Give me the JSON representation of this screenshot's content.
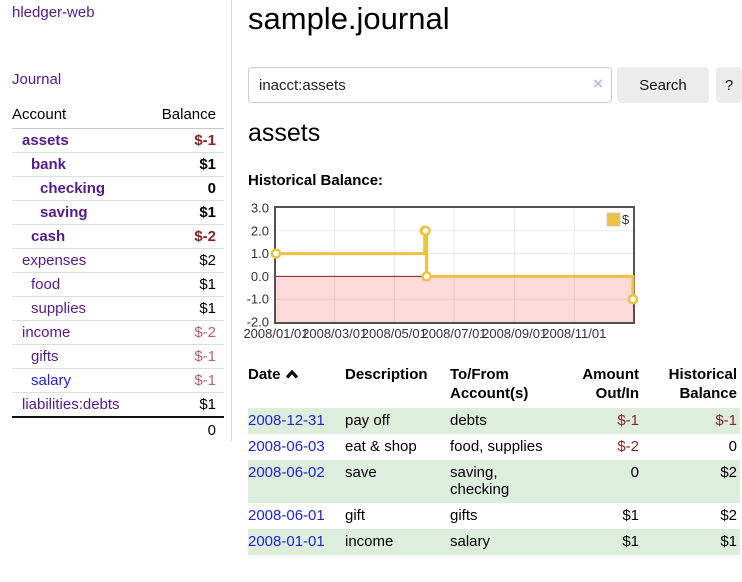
{
  "colors": {
    "link_purple": "#551a8b",
    "link_blue": "#2222dd",
    "negative_strong": "#8a2326",
    "negative_soft": "#bb6365",
    "row_green": "#ddeedd",
    "series_gold": "#edc240"
  },
  "sidebar": {
    "brand": "hledger-web",
    "journal_link": "Journal",
    "accounts": {
      "header_account": "Account",
      "header_balance": "Balance",
      "rows": [
        {
          "name": "assets",
          "balance": "$-1",
          "depth": 0,
          "bold": true,
          "balance_style": "neg-strong",
          "link_style": "purple"
        },
        {
          "name": "bank",
          "balance": "$1",
          "depth": 1,
          "bold": true,
          "balance_style": "pos",
          "link_style": "purple"
        },
        {
          "name": "checking",
          "balance": "0",
          "depth": 2,
          "bold": true,
          "balance_style": "pos",
          "link_style": "purple"
        },
        {
          "name": "saving",
          "balance": "$1",
          "depth": 2,
          "bold": true,
          "balance_style": "pos",
          "link_style": "purple"
        },
        {
          "name": "cash",
          "balance": "$-2",
          "depth": 1,
          "bold": true,
          "balance_style": "neg-strong",
          "link_style": "purple"
        },
        {
          "name": "expenses",
          "balance": "$2",
          "depth": 0,
          "bold": false,
          "balance_style": "pos",
          "link_style": "purple"
        },
        {
          "name": "food",
          "balance": "$1",
          "depth": 1,
          "bold": false,
          "balance_style": "pos",
          "link_style": "purple"
        },
        {
          "name": "supplies",
          "balance": "$1",
          "depth": 1,
          "bold": false,
          "balance_style": "pos",
          "link_style": "purple"
        },
        {
          "name": "income",
          "balance": "$-2",
          "depth": 0,
          "bold": false,
          "balance_style": "neg-soft",
          "link_style": "purple"
        },
        {
          "name": "gifts",
          "balance": "$-1",
          "depth": 1,
          "bold": false,
          "balance_style": "neg-soft",
          "link_style": "purple"
        },
        {
          "name": "salary",
          "balance": "$-1",
          "depth": 1,
          "bold": false,
          "balance_style": "neg-soft",
          "link_style": "blue"
        },
        {
          "name": "liabilities:debts",
          "balance": "$1",
          "depth": 0,
          "bold": false,
          "balance_style": "pos",
          "link_style": "purple"
        }
      ],
      "total": "0"
    }
  },
  "main": {
    "title": "sample.journal",
    "search": {
      "value": "inacct:assets",
      "clear_icon": "×",
      "search_button": "Search",
      "help_button": "?"
    },
    "heading": "assets",
    "chart_label": "Historical Balance:"
  },
  "chart_data": {
    "type": "line",
    "title": "Historical Balance",
    "step": true,
    "series": [
      {
        "name": "$",
        "color": "#edc240",
        "points": [
          [
            "2008-01-01",
            1
          ],
          [
            "2008-06-01",
            2
          ],
          [
            "2008-06-02",
            2
          ],
          [
            "2008-06-03",
            0
          ],
          [
            "2008-12-31",
            -1
          ]
        ]
      }
    ],
    "x_range": [
      "2008-01-01",
      "2008-12-31"
    ],
    "xticks": [
      "2008/01/01",
      "2008/03/01",
      "2008/05/01",
      "2008/07/01",
      "2008/09/01",
      "2008/11/01"
    ],
    "ylim": [
      -2,
      3
    ],
    "yticks": [
      3,
      2,
      1,
      0,
      -1,
      -2
    ],
    "grid": true,
    "legend": {
      "label": "$",
      "position": "top-right"
    },
    "negative_region_fill": "#fcdada",
    "zero_line_color": "#8b1a1a"
  },
  "register": {
    "headers": {
      "date": "Date",
      "description": "Description",
      "accounts": "To/From Account(s)",
      "amount": "Amount Out/In",
      "balance": "Historical Balance"
    },
    "sort_direction": "up",
    "rows": [
      {
        "date": "2008-12-31",
        "description": "pay off",
        "accounts": "debts",
        "amount": "$-1",
        "balance": "$-1",
        "amount_negative": true,
        "balance_negative": true
      },
      {
        "date": "2008-06-03",
        "description": "eat & shop",
        "accounts": "food, supplies",
        "amount": "$-2",
        "balance": "0",
        "amount_negative": true,
        "balance_negative": false
      },
      {
        "date": "2008-06-02",
        "description": "save",
        "accounts": "saving,\nchecking",
        "amount": "0",
        "balance": "$2",
        "amount_negative": false,
        "balance_negative": false
      },
      {
        "date": "2008-06-01",
        "description": "gift",
        "accounts": "gifts",
        "amount": "$1",
        "balance": "$2",
        "amount_negative": false,
        "balance_negative": false
      },
      {
        "date": "2008-01-01",
        "description": "income",
        "accounts": "salary",
        "amount": "$1",
        "balance": "$1",
        "amount_negative": false,
        "balance_negative": false
      }
    ]
  }
}
